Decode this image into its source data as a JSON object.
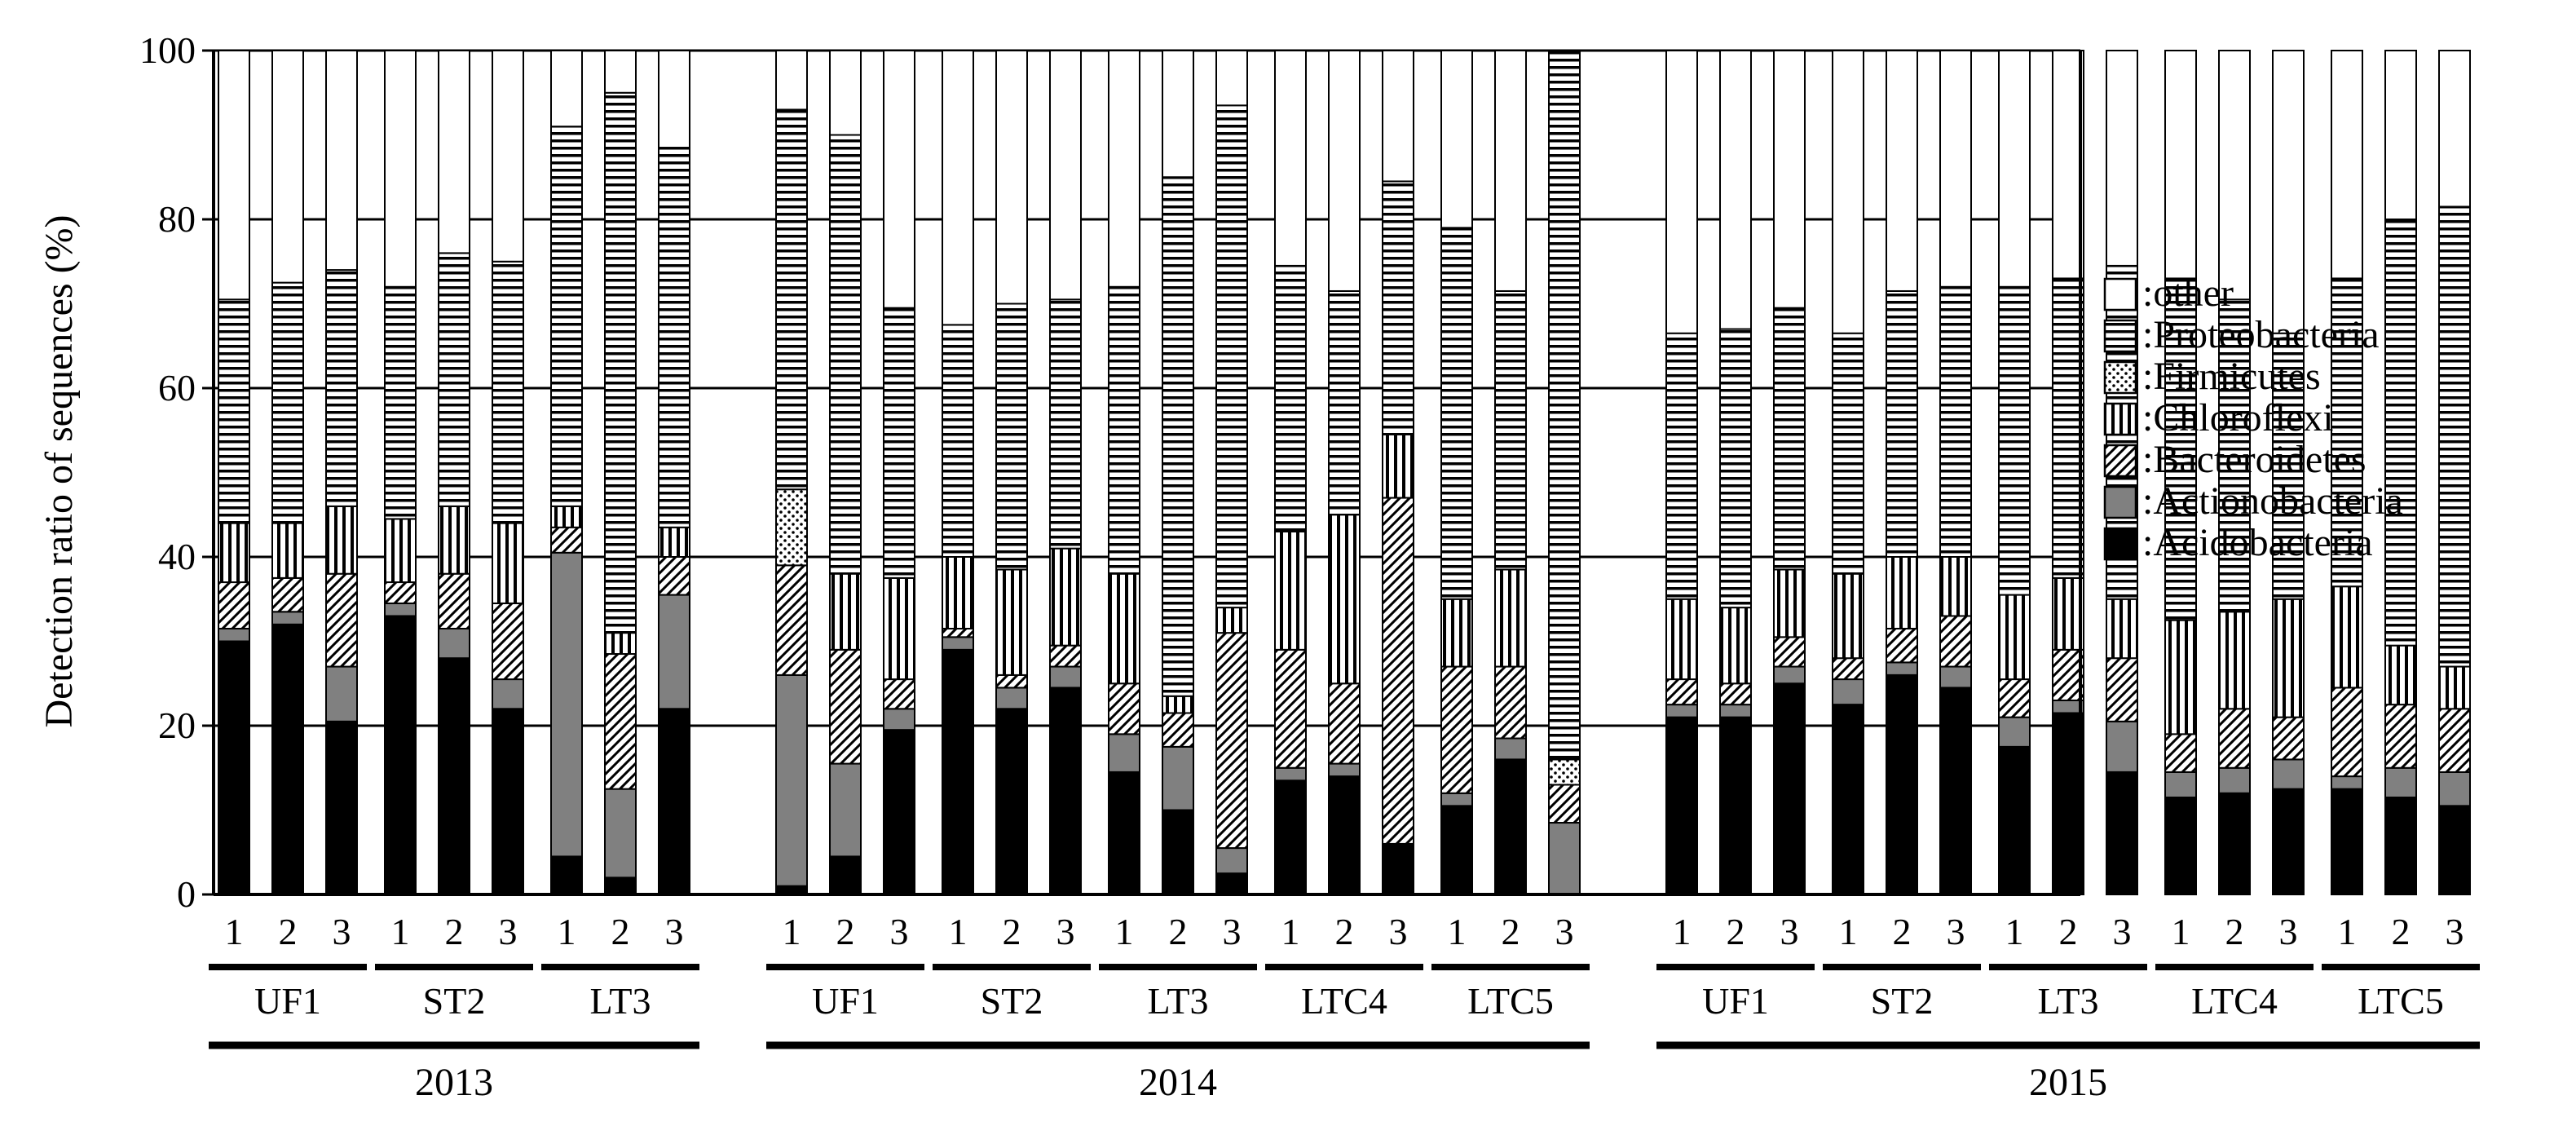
{
  "chart_data": {
    "type": "bar",
    "stacked": true,
    "ylabel": "Detection ratio of sequences (%)",
    "ylim": [
      0,
      100
    ],
    "yticks": [
      0,
      20,
      40,
      60,
      80,
      100
    ],
    "grid": true,
    "legend_position": "right",
    "series": [
      {
        "name": ":Acidobacteria",
        "key": "acido",
        "color": "#000000",
        "pattern": "solid"
      },
      {
        "name": ":Actionobacteria",
        "key": "actino",
        "color": "#808080",
        "pattern": "solid"
      },
      {
        "name": ":Bacteroidetes",
        "key": "bact",
        "color": "#ffffff",
        "pattern": "diagonal"
      },
      {
        "name": ":Chloroflexi",
        "key": "chloro",
        "color": "#ffffff",
        "pattern": "vertical"
      },
      {
        "name": ":Firmicutes",
        "key": "firm",
        "color": "#ffffff",
        "pattern": "dots"
      },
      {
        "name": ":Proteobacteria",
        "key": "proteo",
        "color": "#ffffff",
        "pattern": "horizontal"
      },
      {
        "name": ":other",
        "key": "other",
        "color": "#ffffff",
        "pattern": "none"
      }
    ],
    "years": [
      {
        "label": "2013",
        "groups": [
          {
            "label": "UF1",
            "bars": [
              {
                "rep": "1",
                "values": [
                  30,
                  1.5,
                  5.5,
                  7,
                  0,
                  26.5,
                  29.5
                ]
              },
              {
                "rep": "2",
                "values": [
                  32,
                  1.5,
                  4,
                  6.5,
                  0,
                  28.5,
                  27.5
                ]
              },
              {
                "rep": "3",
                "values": [
                  20.5,
                  6.5,
                  11,
                  8,
                  0,
                  28,
                  26
                ]
              }
            ]
          },
          {
            "label": "ST2",
            "bars": [
              {
                "rep": "1",
                "values": [
                  33,
                  1.5,
                  2.5,
                  7.5,
                  0,
                  27.5,
                  28
                ]
              },
              {
                "rep": "2",
                "values": [
                  28,
                  3.5,
                  6.5,
                  8,
                  0,
                  30,
                  24
                ]
              },
              {
                "rep": "3",
                "values": [
                  22,
                  3.5,
                  9,
                  9.5,
                  0,
                  31,
                  25
                ]
              }
            ]
          },
          {
            "label": "LT3",
            "bars": [
              {
                "rep": "1",
                "values": [
                  4.5,
                  36,
                  3,
                  2.5,
                  0,
                  45,
                  9
                ]
              },
              {
                "rep": "2",
                "values": [
                  2,
                  10.5,
                  16,
                  2.5,
                  0,
                  64,
                  5
                ]
              },
              {
                "rep": "3",
                "values": [
                  22,
                  13.5,
                  4.5,
                  3.5,
                  0,
                  45,
                  11.5
                ]
              }
            ]
          }
        ]
      },
      {
        "label": "2014",
        "groups": [
          {
            "label": "UF1",
            "bars": [
              {
                "rep": "1",
                "values": [
                  1,
                  25,
                  13,
                  0,
                  9,
                  45,
                  7
                ]
              },
              {
                "rep": "2",
                "values": [
                  4.5,
                  11,
                  13.5,
                  9,
                  0,
                  52,
                  10
                ]
              },
              {
                "rep": "3",
                "values": [
                  19.5,
                  2.5,
                  3.5,
                  12,
                  0,
                  32,
                  30.5
                ]
              }
            ]
          },
          {
            "label": "ST2",
            "bars": [
              {
                "rep": "1",
                "values": [
                  29,
                  1.5,
                  1,
                  8.5,
                  0,
                  27.5,
                  32.5
                ]
              },
              {
                "rep": "2",
                "values": [
                  22,
                  2.5,
                  1.5,
                  12.5,
                  0,
                  31.5,
                  30
                ]
              },
              {
                "rep": "3",
                "values": [
                  24.5,
                  2.5,
                  2.5,
                  11.5,
                  0,
                  29.5,
                  29.5
                ]
              }
            ]
          },
          {
            "label": "LT3",
            "bars": [
              {
                "rep": "1",
                "values": [
                  14.5,
                  4.5,
                  6,
                  13,
                  0,
                  34,
                  28
                ]
              },
              {
                "rep": "2",
                "values": [
                  10,
                  7.5,
                  4,
                  2,
                  0,
                  61.5,
                  15
                ]
              },
              {
                "rep": "3",
                "values": [
                  2.5,
                  3,
                  25.5,
                  3,
                  0,
                  59.5,
                  6.5
                ]
              }
            ]
          },
          {
            "label": "LTC4",
            "bars": [
              {
                "rep": "1",
                "values": [
                  13.5,
                  1.5,
                  14,
                  14,
                  0,
                  31.5,
                  25.5
                ]
              },
              {
                "rep": "2",
                "values": [
                  14,
                  1.5,
                  9.5,
                  20,
                  0,
                  26.5,
                  28.5
                ]
              },
              {
                "rep": "3",
                "values": [
                  6,
                  0,
                  41,
                  7.5,
                  0,
                  30,
                  15.5
                ]
              }
            ]
          },
          {
            "label": "LTC5",
            "bars": [
              {
                "rep": "1",
                "values": [
                  10.5,
                  1.5,
                  15,
                  8,
                  0,
                  44,
                  21
                ]
              },
              {
                "rep": "2",
                "values": [
                  16,
                  2.5,
                  8.5,
                  11.5,
                  0,
                  33,
                  28.5
                ]
              },
              {
                "rep": "3",
                "values": [
                  0,
                  8.5,
                  4.5,
                  0,
                  3,
                  84,
                  0
                ]
              }
            ]
          }
        ]
      },
      {
        "label": "2015",
        "groups": [
          {
            "label": "UF1",
            "bars": [
              {
                "rep": "1",
                "values": [
                  21,
                  1.5,
                  3,
                  9.5,
                  0,
                  31.5,
                  33.5
                ]
              },
              {
                "rep": "2",
                "values": [
                  21,
                  1.5,
                  2.5,
                  9,
                  0,
                  33,
                  33
                ]
              },
              {
                "rep": "3",
                "values": [
                  25,
                  2,
                  3.5,
                  8,
                  0,
                  31,
                  30.5
                ]
              }
            ]
          },
          {
            "label": "ST2",
            "bars": [
              {
                "rep": "1",
                "values": [
                  22.5,
                  3,
                  2.5,
                  10,
                  0,
                  28.5,
                  33.5
                ]
              },
              {
                "rep": "2",
                "values": [
                  26,
                  1.5,
                  4,
                  8.5,
                  0,
                  31.5,
                  28.5
                ]
              },
              {
                "rep": "3",
                "values": [
                  24.5,
                  2.5,
                  6,
                  7,
                  0,
                  32,
                  28
                ]
              }
            ]
          },
          {
            "label": "LT3",
            "bars": [
              {
                "rep": "1",
                "values": [
                  17.5,
                  3.5,
                  4.5,
                  10,
                  0,
                  36.5,
                  28
                ]
              },
              {
                "rep": "2",
                "values": [
                  21.5,
                  1.5,
                  6,
                  8.5,
                  0,
                  35.5,
                  27
                ]
              },
              {
                "rep": "3",
                "values": [
                  14.5,
                  6,
                  7.5,
                  7,
                  0,
                  39.5,
                  25.5
                ]
              }
            ]
          },
          {
            "label": "LTC4",
            "bars": [
              {
                "rep": "1",
                "values": [
                  11.5,
                  3,
                  4.5,
                  13.5,
                  0,
                  40.5,
                  27
                ]
              },
              {
                "rep": "2",
                "values": [
                  12,
                  3,
                  7,
                  11.5,
                  0,
                  37,
                  29.5
                ]
              },
              {
                "rep": "3",
                "values": [
                  12.5,
                  3.5,
                  5,
                  14,
                  0,
                  31.5,
                  33.5
                ]
              }
            ]
          },
          {
            "label": "LTC5",
            "bars": [
              {
                "rep": "1",
                "values": [
                  12.5,
                  1.5,
                  10.5,
                  12,
                  0,
                  36.5,
                  27
                ]
              },
              {
                "rep": "2",
                "values": [
                  11.5,
                  3.5,
                  7.5,
                  7,
                  0,
                  50.5,
                  20
                ]
              },
              {
                "rep": "3",
                "values": [
                  10.5,
                  4,
                  7.5,
                  5,
                  0,
                  54.5,
                  18.5
                ]
              }
            ]
          }
        ]
      }
    ]
  }
}
